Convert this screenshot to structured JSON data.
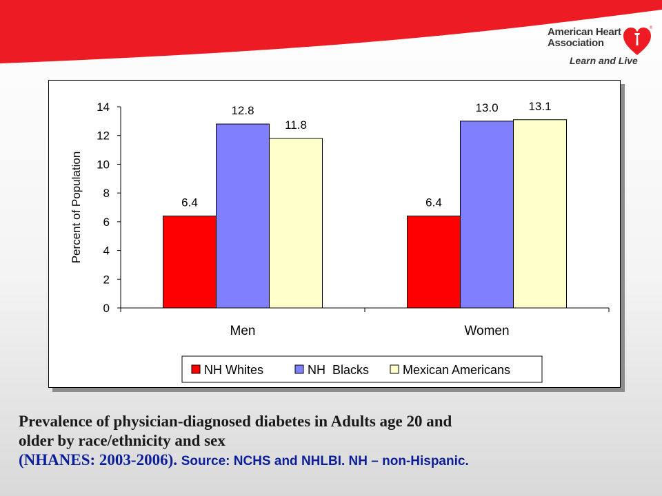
{
  "header": {
    "brand_color": "#ed1c24",
    "logo": {
      "name": "American Heart Association",
      "tagline": "Learn and Live",
      "icon": "torch-heart-icon"
    }
  },
  "chart_data": {
    "type": "bar",
    "categories": [
      "Men",
      "Women"
    ],
    "series": [
      {
        "name": "NH Whites",
        "values": [
          6.4,
          6.4
        ],
        "labels": [
          "6.4",
          "6.4"
        ],
        "color": "#ff0000"
      },
      {
        "name": "NH  Blacks",
        "values": [
          12.8,
          13.0
        ],
        "labels": [
          "12.8",
          "13.0"
        ],
        "color": "#8080ff"
      },
      {
        "name": "Mexican Americans",
        "values": [
          11.8,
          13.1
        ],
        "labels": [
          "11.8",
          "13.1"
        ],
        "color": "#ffffcc"
      }
    ],
    "ylabel": "Percent of Population",
    "ylim": [
      0,
      14
    ],
    "yticks": [
      0,
      2,
      4,
      6,
      8,
      10,
      12,
      14
    ],
    "grid": false,
    "legend": "bottom"
  },
  "caption": {
    "line1": "Prevalence of physician-diagnosed diabetes in Adults age 20 and",
    "line2": "older by race/ethnicity and sex",
    "line3": "(NHANES: 2003-2006).",
    "source": "Source: NCHS and NHLBI.  NH – non-Hispanic."
  }
}
